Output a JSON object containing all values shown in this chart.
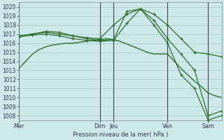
{
  "xlabel": "Pression niveau de la mer( hPa )",
  "background_color": "#cce8e8",
  "grid_color": "#aad0d0",
  "line_color": "#2d6e2d",
  "dark_vline_color": "#444444",
  "ylim": [
    1007.5,
    1020.5
  ],
  "yticks": [
    1008,
    1009,
    1010,
    1011,
    1012,
    1013,
    1014,
    1015,
    1016,
    1017,
    1018,
    1019,
    1020
  ],
  "xlim": [
    0,
    30
  ],
  "day_labels": [
    "Mer",
    "Dim",
    "Jeu",
    "Ven",
    "Sam"
  ],
  "day_positions": [
    0,
    12,
    14,
    22,
    28
  ],
  "dark_vlines": [
    0,
    12,
    14,
    22,
    28
  ],
  "line1_x": [
    0,
    1,
    2,
    3,
    4,
    5,
    6,
    7,
    8,
    9,
    10,
    11,
    12,
    13,
    14,
    15,
    16,
    17,
    18,
    19,
    20,
    21,
    22,
    23,
    24,
    25,
    26,
    27,
    28,
    29,
    30
  ],
  "line1_y": [
    1013.2,
    1014.0,
    1014.8,
    1015.3,
    1015.6,
    1015.8,
    1015.9,
    1016.0,
    1016.0,
    1016.1,
    1016.2,
    1016.3,
    1016.4,
    1016.5,
    1016.4,
    1016.2,
    1015.9,
    1015.6,
    1015.3,
    1015.0,
    1014.8,
    1014.8,
    1014.8,
    1014.0,
    1013.2,
    1012.5,
    1011.8,
    1011.2,
    1010.5,
    1010.2,
    1010.0
  ],
  "line2_x": [
    0,
    2,
    4,
    6,
    8,
    10,
    12,
    14,
    16,
    18,
    20,
    22,
    24,
    26,
    28,
    30
  ],
  "line2_y": [
    1016.8,
    1017.0,
    1017.2,
    1017.0,
    1016.8,
    1016.6,
    1016.5,
    1018.0,
    1019.2,
    1019.8,
    1019.2,
    1018.0,
    1016.5,
    1015.0,
    1014.8,
    1014.5
  ],
  "line3_x": [
    0,
    2,
    4,
    6,
    8,
    10,
    12,
    14,
    16,
    18,
    20,
    22,
    24,
    26,
    28,
    30
  ],
  "line3_y": [
    1016.8,
    1017.0,
    1017.3,
    1017.2,
    1016.8,
    1016.5,
    1016.3,
    1016.4,
    1019.5,
    1019.8,
    1018.5,
    1016.5,
    1014.8,
    1013.0,
    1008.0,
    1008.5
  ],
  "line4_x": [
    0,
    2,
    4,
    6,
    8,
    10,
    12,
    14,
    16,
    18,
    20,
    22,
    24,
    26,
    28,
    30
  ],
  "line4_y": [
    1016.7,
    1016.9,
    1017.0,
    1016.8,
    1016.5,
    1016.3,
    1016.2,
    1016.3,
    1018.2,
    1019.8,
    1018.0,
    1016.0,
    1012.5,
    1011.0,
    1007.5,
    1008.0
  ]
}
